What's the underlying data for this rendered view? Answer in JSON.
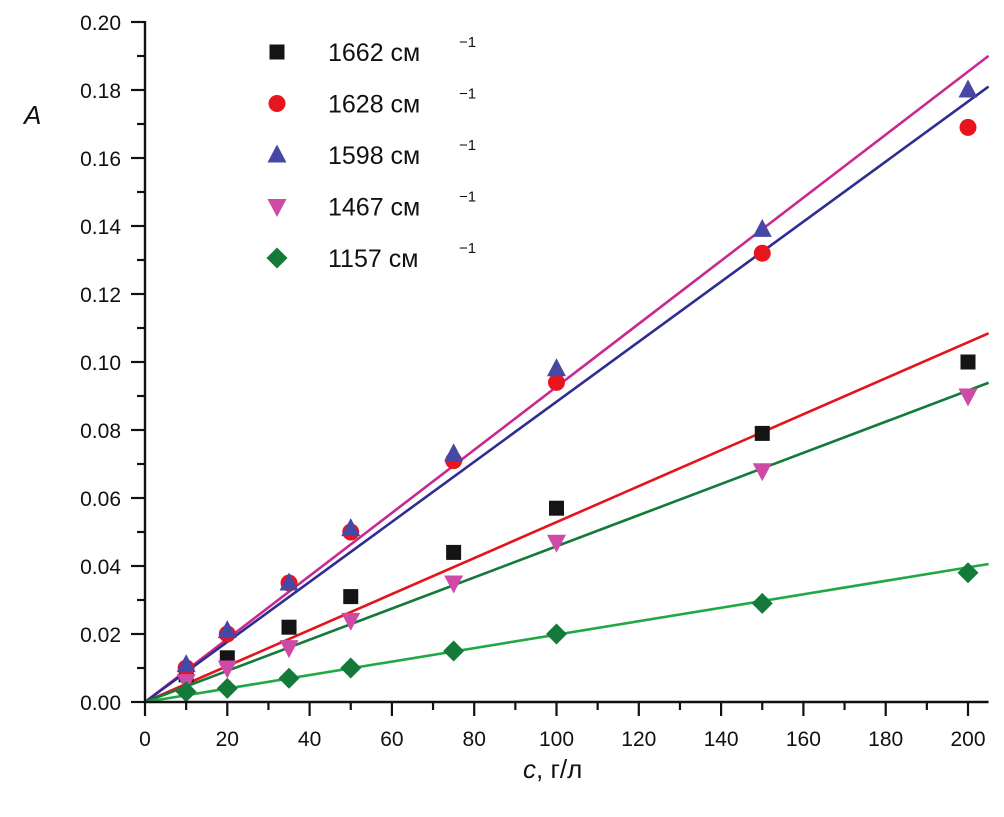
{
  "chart_data": {
    "type": "scatter",
    "title": "",
    "xlabel": "c, г/л",
    "xlabel_var": "c",
    "xlabel_unit": ", г/л",
    "ylabel": "A",
    "xlim": [
      0,
      205
    ],
    "ylim": [
      0,
      0.2
    ],
    "x_major_ticks": [
      0,
      20,
      40,
      60,
      80,
      100,
      120,
      140,
      160,
      180,
      200
    ],
    "x_tick_labels": [
      "0",
      "20",
      "40",
      "60",
      "80",
      "100",
      "120",
      "140",
      "160",
      "180",
      "200"
    ],
    "x_minor_step": 10,
    "y_major_ticks": [
      0,
      0.02,
      0.04,
      0.06,
      0.08,
      0.1,
      0.12,
      0.14,
      0.16,
      0.18,
      0.2
    ],
    "y_tick_labels": [
      "0.00",
      "0.02",
      "0.04",
      "0.06",
      "0.08",
      "0.10",
      "0.12",
      "0.14",
      "0.16",
      "0.18",
      "0.20"
    ],
    "y_minor_step": 0.01,
    "grid": false,
    "legend_position": "top-left",
    "x": [
      10,
      20,
      35,
      50,
      75,
      100,
      150,
      200
    ],
    "series": [
      {
        "name": "1662 см",
        "superscript": "−1",
        "marker": "square",
        "marker_color": "#141414",
        "values": [
          0.008,
          0.013,
          0.022,
          0.031,
          0.044,
          0.057,
          0.079,
          0.1
        ],
        "fit": {
          "slope": 0.000529,
          "color": "#e3141c"
        }
      },
      {
        "name": "1628 см",
        "superscript": "−1",
        "marker": "circle",
        "marker_color": "#e8141e",
        "values": [
          0.01,
          0.02,
          0.035,
          0.05,
          0.071,
          0.094,
          0.132,
          0.169
        ],
        "fit": {
          "slope": 0.000927,
          "color": "#c9298f"
        }
      },
      {
        "name": "1598 см",
        "superscript": "−1",
        "marker": "triangle-up",
        "marker_color": "#4747a6",
        "values": [
          0.011,
          0.021,
          0.035,
          0.051,
          0.073,
          0.098,
          0.139,
          0.18
        ],
        "fit": {
          "slope": 0.000883,
          "color": "#2e2e90"
        }
      },
      {
        "name": "1467 см",
        "superscript": "−1",
        "marker": "triangle-down",
        "marker_color": "#cf4aa6",
        "values": [
          0.006,
          0.01,
          0.016,
          0.024,
          0.035,
          0.047,
          0.068,
          0.09
        ],
        "fit": {
          "slope": 0.000458,
          "color": "#137a3a"
        }
      },
      {
        "name": "1157 см",
        "superscript": "−1",
        "marker": "diamond",
        "marker_color": "#137a3a",
        "values": [
          0.003,
          0.004,
          0.007,
          0.01,
          0.015,
          0.02,
          0.029,
          0.038
        ],
        "fit": {
          "slope": 0.000198,
          "color": "#1fa845"
        }
      }
    ]
  }
}
